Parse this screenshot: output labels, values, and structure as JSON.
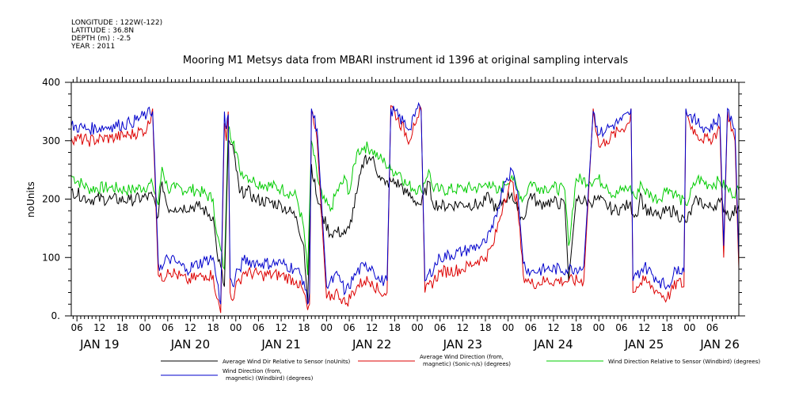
{
  "meta": {
    "longitude": "LONGITUDE : 122W(-122)",
    "latitude": "LATITUDE : 36.8N",
    "depth": "DEPTH (m) : -2.5",
    "year": "YEAR : 2011"
  },
  "chart_data": {
    "type": "line",
    "title": "Mooring M1 Metsys data from MBARI instrument id 1396 at original sampling intervals",
    "ylabel": "noUnits",
    "xlabel": "",
    "ylim": [
      0,
      400
    ],
    "yticks": [
      0,
      100,
      200,
      300,
      400
    ],
    "ytick_labels": [
      "0.",
      "100",
      "200",
      "300",
      "400"
    ],
    "xlim": [
      4.5,
      181
    ],
    "hour_ticks": [
      {
        "h": 6,
        "label": "06"
      },
      {
        "h": 12,
        "label": "12"
      },
      {
        "h": 18,
        "label": "18"
      },
      {
        "h": 24,
        "label": "00"
      },
      {
        "h": 30,
        "label": "06"
      },
      {
        "h": 36,
        "label": "12"
      },
      {
        "h": 42,
        "label": "18"
      },
      {
        "h": 48,
        "label": "00"
      },
      {
        "h": 54,
        "label": "06"
      },
      {
        "h": 60,
        "label": "12"
      },
      {
        "h": 66,
        "label": "18"
      },
      {
        "h": 72,
        "label": "00"
      },
      {
        "h": 78,
        "label": "06"
      },
      {
        "h": 84,
        "label": "12"
      },
      {
        "h": 90,
        "label": "18"
      },
      {
        "h": 96,
        "label": "00"
      },
      {
        "h": 102,
        "label": "06"
      },
      {
        "h": 108,
        "label": "12"
      },
      {
        "h": 114,
        "label": "18"
      },
      {
        "h": 120,
        "label": "00"
      },
      {
        "h": 126,
        "label": "06"
      },
      {
        "h": 132,
        "label": "12"
      },
      {
        "h": 138,
        "label": "18"
      },
      {
        "h": 144,
        "label": "00"
      },
      {
        "h": 150,
        "label": "06"
      },
      {
        "h": 156,
        "label": "12"
      },
      {
        "h": 162,
        "label": "18"
      },
      {
        "h": 168,
        "label": "00"
      },
      {
        "h": 174,
        "label": "06"
      }
    ],
    "day_labels": [
      {
        "h": 12,
        "label": "JAN 19"
      },
      {
        "h": 36,
        "label": "JAN 20"
      },
      {
        "h": 60,
        "label": "JAN 21"
      },
      {
        "h": 84,
        "label": "JAN 22"
      },
      {
        "h": 108,
        "label": "JAN 23"
      },
      {
        "h": 132,
        "label": "JAN 24"
      },
      {
        "h": 156,
        "label": "JAN 25"
      },
      {
        "h": 176,
        "label": "JAN 26"
      }
    ],
    "x_units": "hours since JAN 19 00:00",
    "series": [
      {
        "name": "Average Wind Dir Relative to Sensor (noUnits)",
        "color": "#000000",
        "x": [
          4.5,
          9,
          15,
          20,
          26,
          27.5,
          28.5,
          30,
          32,
          38,
          42,
          43,
          45,
          46,
          47.5,
          49,
          51,
          53,
          60,
          64,
          66,
          67,
          68,
          69.5,
          71,
          73,
          74.5,
          77,
          78,
          80,
          82,
          84,
          86,
          87.5,
          89,
          91.5,
          93,
          97,
          99,
          100,
          102,
          108,
          113,
          115,
          117,
          119,
          121,
          122.5,
          124,
          126,
          128,
          130,
          132,
          135,
          136,
          138,
          141.5,
          143.5,
          146,
          148,
          150,
          152,
          154,
          155,
          156,
          158,
          160,
          162,
          164,
          167,
          170,
          173,
          176,
          179,
          181
        ],
        "y": [
          215,
          200,
          200,
          198,
          205,
          170,
          230,
          185,
          185,
          188,
          170,
          110,
          50,
          300,
          280,
          210,
          215,
          200,
          190,
          170,
          120,
          20,
          260,
          200,
          170,
          140,
          145,
          140,
          150,
          210,
          270,
          270,
          240,
          225,
          230,
          225,
          210,
          190,
          230,
          195,
          188,
          192,
          190,
          205,
          180,
          200,
          210,
          180,
          165,
          210,
          190,
          195,
          195,
          190,
          60,
          200,
          195,
          200,
          190,
          180,
          185,
          190,
          170,
          210,
          185,
          175,
          170,
          180,
          180,
          160,
          200,
          185,
          195,
          170,
          190
        ]
      },
      {
        "name": "Average Wind Direction (from, magnetic) (Sonic-n/s) (degrees)",
        "color": "#dd0000",
        "x": [
          4.5,
          9,
          15,
          20,
          24.5,
          26,
          26.5,
          27.5,
          28.5,
          30,
          35,
          40,
          42,
          43,
          44,
          45,
          45.5,
          46,
          46.5,
          47.5,
          48.5,
          49,
          50,
          55,
          60,
          64,
          66,
          67,
          67.5,
          68,
          69.5,
          72,
          75,
          77,
          80,
          82,
          84,
          86,
          88,
          89,
          94,
          95,
          96,
          97,
          98,
          102,
          108,
          112,
          114,
          116,
          119,
          121,
          122.5,
          124,
          126,
          130,
          136,
          140,
          142.5,
          143.5,
          144,
          146,
          150,
          152,
          152.5,
          153,
          154,
          156,
          160,
          162,
          165,
          166.5,
          167,
          168,
          170,
          173,
          176,
          177,
          178,
          180,
          181
        ],
        "y": [
          305,
          300,
          305,
          310,
          320,
          355,
          260,
          70,
          60,
          80,
          60,
          70,
          70,
          30,
          5,
          330,
          300,
          350,
          40,
          30,
          60,
          60,
          75,
          70,
          70,
          60,
          40,
          10,
          20,
          350,
          300,
          30,
          40,
          20,
          50,
          60,
          60,
          40,
          40,
          360,
          300,
          330,
          340,
          355,
          40,
          75,
          80,
          95,
          100,
          120,
          200,
          230,
          190,
          70,
          55,
          60,
          60,
          60,
          355,
          310,
          290,
          300,
          320,
          330,
          355,
          40,
          50,
          60,
          40,
          30,
          60,
          50,
          350,
          330,
          310,
          300,
          320,
          100,
          350,
          300,
          80
        ]
      },
      {
        "name": "Wind Direction Relative to Sensor (Windbird) (degrees)",
        "color": "#00cc00",
        "x": [
          4.5,
          9,
          15,
          20,
          26,
          27.5,
          28.5,
          30,
          32,
          38,
          42,
          43,
          45,
          46,
          47.5,
          49,
          51,
          53,
          60,
          64,
          66,
          67,
          68,
          69.5,
          71,
          73,
          74.5,
          77,
          78,
          80,
          82,
          84,
          86,
          87.5,
          89,
          91.5,
          93,
          97,
          99,
          100,
          102,
          108,
          113,
          115,
          117,
          119,
          121,
          122.5,
          124,
          126,
          128,
          130,
          132,
          135,
          136,
          138,
          141.5,
          143.5,
          146,
          148,
          150,
          152,
          154,
          155,
          156,
          158,
          160,
          162,
          164,
          167,
          170,
          173,
          176,
          179,
          181
        ],
        "y": [
          240,
          218,
          220,
          215,
          225,
          190,
          255,
          218,
          218,
          215,
          200,
          140,
          80,
          320,
          300,
          250,
          240,
          230,
          218,
          205,
          150,
          70,
          300,
          240,
          200,
          180,
          210,
          235,
          210,
          280,
          290,
          285,
          270,
          262,
          250,
          245,
          225,
          215,
          250,
          220,
          215,
          218,
          220,
          230,
          210,
          225,
          240,
          215,
          200,
          230,
          220,
          220,
          220,
          215,
          120,
          235,
          230,
          235,
          225,
          205,
          215,
          220,
          200,
          230,
          215,
          205,
          200,
          220,
          210,
          190,
          235,
          225,
          230,
          210,
          215
        ]
      },
      {
        "name": "Wind Direction (from, magnetic) (Windbird) (degrees)",
        "color": "#0000cc",
        "x": [
          4.5,
          9,
          15,
          20,
          24.5,
          26,
          26.5,
          27.5,
          28.5,
          30,
          35,
          40,
          42,
          43,
          44,
          45,
          45.5,
          46,
          46.5,
          47.5,
          48.5,
          49,
          50,
          55,
          60,
          64,
          66,
          67,
          67.5,
          68,
          69.5,
          72,
          75,
          77,
          80,
          82,
          84,
          86,
          88,
          89,
          94,
          95,
          96,
          97,
          98,
          102,
          108,
          112,
          114,
          116,
          119,
          121,
          122.5,
          124,
          126,
          130,
          136,
          140,
          142.5,
          143.5,
          144,
          146,
          150,
          152,
          152.5,
          153,
          154,
          156,
          160,
          162,
          165,
          166.5,
          167,
          168,
          170,
          173,
          176,
          177,
          178,
          180,
          181
        ],
        "y": [
          325,
          320,
          325,
          330,
          345,
          350,
          275,
          90,
          80,
          100,
          80,
          95,
          100,
          60,
          20,
          350,
          320,
          345,
          65,
          50,
          80,
          80,
          95,
          90,
          90,
          80,
          60,
          20,
          40,
          355,
          320,
          50,
          70,
          40,
          75,
          85,
          85,
          60,
          60,
          355,
          320,
          345,
          355,
          350,
          60,
          100,
          110,
          120,
          125,
          150,
          230,
          250,
          215,
          90,
          75,
          80,
          80,
          85,
          350,
          325,
          310,
          320,
          335,
          345,
          355,
          60,
          70,
          85,
          60,
          50,
          85,
          75,
          355,
          345,
          330,
          320,
          340,
          120,
          355,
          320,
          100
        ]
      }
    ],
    "legend": [
      {
        "label_lines": [
          "Average Wind Dir Relative to Sensor (noUnits)"
        ],
        "color": "#000000"
      },
      {
        "label_lines": [
          "Average Wind Direction (from,",
          "magnetic) (Sonic-n/s) (degrees)"
        ],
        "color": "#dd0000"
      },
      {
        "label_lines": [
          "Wind Direction Relative to Sensor (Windbird) (degrees)"
        ],
        "color": "#00cc00"
      },
      {
        "label_lines": [
          "Wind Direction (from,",
          "magnetic) (Windbird) (degrees)"
        ],
        "color": "#0000cc"
      }
    ],
    "legend_placement": "bottom",
    "grid": false
  }
}
